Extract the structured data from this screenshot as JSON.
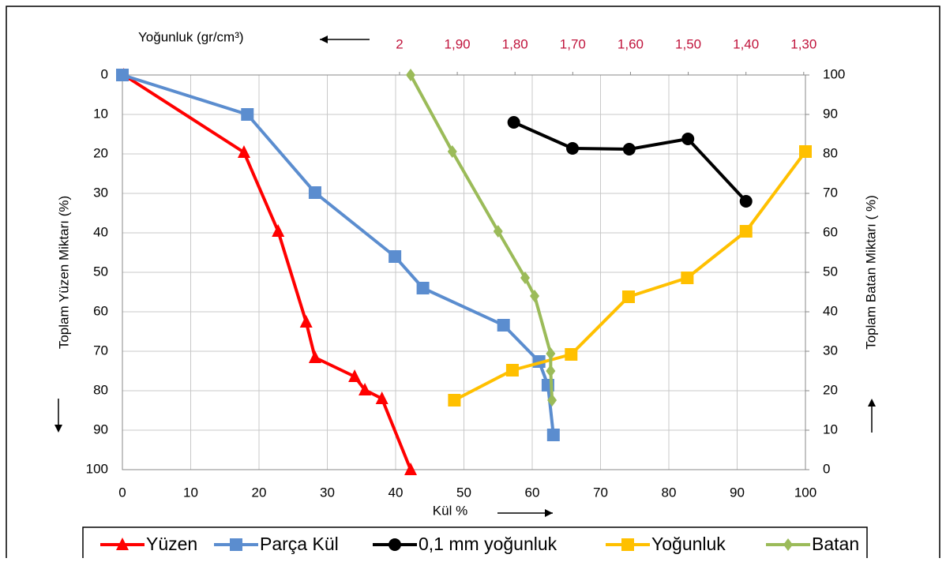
{
  "chart_data": {
    "type": "line",
    "xlabel": "Kül %",
    "ylabel": "Toplam Yüzen Miktarı (%)",
    "y2label": "Toplam Batan Miktarı ( %)",
    "x2label": "Yoğunluk  (gr/cm³)",
    "xlim": [
      0,
      100
    ],
    "xticks": [
      0,
      10,
      20,
      30,
      40,
      50,
      60,
      70,
      80,
      90,
      100
    ],
    "ylim": [
      0,
      100
    ],
    "yticks": [
      0,
      10,
      20,
      30,
      40,
      50,
      60,
      70,
      80,
      90,
      100
    ],
    "y_reversed": true,
    "y2lim": [
      0,
      100
    ],
    "y2ticks": [
      0,
      10,
      20,
      30,
      40,
      50,
      60,
      70,
      80,
      90,
      100
    ],
    "x2lim": [
      2.48,
      1.297
    ],
    "x2ticks": [
      2,
      {
        "value": 1.9,
        "label": "1,90"
      },
      {
        "value": 1.8,
        "label": "1,80"
      },
      {
        "value": 1.7,
        "label": "1,70"
      },
      {
        "value": 1.6,
        "label": "1,60"
      },
      {
        "value": 1.5,
        "label": "1,50"
      },
      {
        "value": 1.4,
        "label": "1,40"
      },
      {
        "value": 1.3,
        "label": "1,30"
      }
    ],
    "x2tick_color": "#c0143c",
    "grid": true,
    "series": [
      {
        "name": "Yüzen",
        "color": "#ff0000",
        "marker": "triangle",
        "axis": "y",
        "x": [
          0.2,
          17.8,
          22.8,
          26.9,
          28.2,
          34,
          35.5,
          38,
          42.2
        ],
        "values": [
          0,
          19.6,
          39.6,
          62.6,
          71.6,
          76.4,
          79.8,
          82,
          100
        ]
      },
      {
        "name": "Parça Kül",
        "color": "#5b8dcf",
        "marker": "square",
        "axis": "y",
        "x": [
          0,
          18.3,
          28.2,
          39.9,
          44,
          55.8,
          61,
          62.3,
          63.1
        ],
        "values": [
          0,
          10,
          29.8,
          46,
          54,
          63.4,
          72.6,
          78.6,
          91.2
        ]
      },
      {
        "name": "0,1 mm yoğunluk",
        "color": "#000000",
        "marker": "circle",
        "axis": "y2",
        "x": [
          57.3,
          65.9,
          74.2,
          82.8,
          91.3
        ],
        "values": [
          88,
          81.4,
          81.2,
          83.8,
          68
        ]
      },
      {
        "name": "Yoğunluk",
        "color": "#ffc000",
        "marker": "square",
        "axis": "y2",
        "x": [
          48.6,
          57.1,
          65.7,
          74.1,
          82.7,
          91.3,
          100
        ],
        "values": [
          17.6,
          25.2,
          29.2,
          43.8,
          48.6,
          60.4,
          80.6
        ]
      },
      {
        "name": "Batan",
        "color": "#9bbb59",
        "marker": "diamond",
        "axis": "y2",
        "x": [
          42.2,
          48.3,
          55,
          58.96,
          60.35,
          62.7,
          62.7,
          62.9
        ],
        "values": [
          100,
          80.6,
          60.4,
          48.6,
          44,
          29.4,
          25,
          17.6
        ]
      }
    ]
  }
}
